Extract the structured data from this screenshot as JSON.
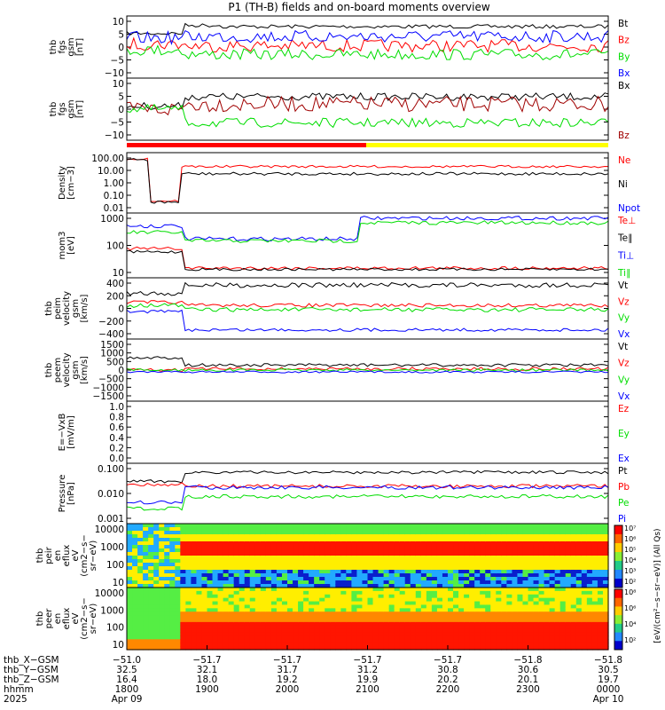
{
  "title": "P1 (TH-B) fields and on-board moments overview",
  "colors": {
    "black": "#000000",
    "red": "#ff0000",
    "green": "#00dd00",
    "blue": "#0000ff",
    "darkred": "#a00000",
    "yellow": "#ffff00"
  },
  "chart_data": [
    {
      "type": "line",
      "ylabel": [
        "thb",
        "fgs",
        "gsm",
        "[nT]"
      ],
      "yticks": [
        "10",
        "5",
        "0",
        "−5",
        "−10"
      ],
      "ylim": [
        -12,
        12
      ],
      "legend": [
        {
          "label": "Bt",
          "color": "black"
        },
        {
          "label": "Bz",
          "color": "red"
        },
        {
          "label": "By",
          "color": "green"
        },
        {
          "label": "Bx",
          "color": "blue"
        }
      ]
    },
    {
      "type": "line",
      "ylabel": [
        "thb",
        "fgs",
        "gsm",
        "[nT]"
      ],
      "yticks": [
        "10",
        "5",
        "0",
        "−5",
        "−10"
      ],
      "ylim": [
        -12,
        12
      ],
      "legend": [
        {
          "label": "Bx",
          "color": "black"
        },
        {
          "label": "Bz",
          "color": "darkred"
        }
      ]
    },
    {
      "type": "line",
      "ylabel": [
        "Density",
        "[cm−3]"
      ],
      "yticks": [
        "100.00",
        "10.00",
        "1.00",
        "0.10",
        "0.01"
      ],
      "ylim": [
        0.005,
        200
      ],
      "log": true,
      "legend": [
        {
          "label": "Ne",
          "color": "red"
        },
        {
          "label": "Ni",
          "color": "black"
        },
        {
          "label": "Npot",
          "color": "blue"
        }
      ]
    },
    {
      "type": "line",
      "ylabel": [
        "mom3",
        "[eV]"
      ],
      "yticks": [
        "1000",
        "100",
        "10"
      ],
      "ylim": [
        8,
        2000
      ],
      "log": true,
      "legend": [
        {
          "label": "Te⊥",
          "color": "red"
        },
        {
          "label": "Te∥",
          "color": "black"
        },
        {
          "label": "Ti⊥",
          "color": "blue"
        },
        {
          "label": "Ti∥",
          "color": "green"
        }
      ]
    },
    {
      "type": "line",
      "ylabel": [
        "thb",
        "peim",
        "velocity",
        "gsm",
        "[km/s]"
      ],
      "yticks": [
        "400",
        "200",
        "0",
        "−200",
        "−400"
      ],
      "ylim": [
        -450,
        450
      ],
      "legend": [
        {
          "label": "Vt",
          "color": "black"
        },
        {
          "label": "Vz",
          "color": "red"
        },
        {
          "label": "Vy",
          "color": "green"
        },
        {
          "label": "Vx",
          "color": "blue"
        }
      ]
    },
    {
      "type": "line",
      "ylabel": [
        "thb",
        "peem",
        "velocity",
        "gsm",
        "[km/s]"
      ],
      "yticks": [
        "1500",
        "1000",
        "500",
        "0",
        "−500",
        "−1000",
        "−1500"
      ],
      "ylim": [
        -1500,
        1500
      ],
      "legend": [
        {
          "label": "Vt",
          "color": "black"
        },
        {
          "label": "Vz",
          "color": "red"
        },
        {
          "label": "Vy",
          "color": "green"
        },
        {
          "label": "Vx",
          "color": "blue"
        }
      ]
    },
    {
      "type": "line",
      "ylabel": [
        "E=−VxB",
        "[mV/m]"
      ],
      "yticks": [
        "1.0",
        "0.8",
        "0.6",
        "0.4",
        "0.2",
        "0.0"
      ],
      "ylim": [
        0,
        1
      ],
      "legend": [
        {
          "label": "Ez",
          "color": "red"
        },
        {
          "label": "Ey",
          "color": "green"
        },
        {
          "label": "Ex",
          "color": "blue"
        }
      ]
    },
    {
      "type": "line",
      "ylabel": [
        "Pressure",
        "[nPa]"
      ],
      "yticks": [
        "0.100",
        "0.010",
        "0.001"
      ],
      "ylim": [
        0.0002,
        0.15
      ],
      "log": true,
      "legend": [
        {
          "label": "Pt",
          "color": "black"
        },
        {
          "label": "Pb",
          "color": "red"
        },
        {
          "label": "Pe",
          "color": "green"
        },
        {
          "label": "Pi",
          "color": "blue"
        }
      ]
    },
    {
      "type": "heatmap",
      "ylabel": [
        "thb",
        "peir",
        "en",
        "eflux",
        "eV",
        "(cm2−s−",
        "sr−eV)"
      ],
      "yticks": [
        "10000",
        "1000",
        "100",
        "10"
      ]
    },
    {
      "type": "heatmap",
      "ylabel": [
        "thb",
        "peer",
        "en",
        "eflux",
        "eV",
        "(cm2−s−",
        "sr−eV)"
      ],
      "yticks": [
        "10000",
        "1000",
        "100",
        "10"
      ]
    }
  ],
  "colorbar": {
    "ticks": [
      "10⁷",
      "10⁶",
      "10⁵",
      "10⁴",
      "10³",
      "10²",
      "10⁸",
      "10⁶",
      "10⁴",
      "10²"
    ],
    "label": "[eV/(cm²−s−sr−eV)] (All Qs)"
  },
  "axis_rows": [
    {
      "label": "thb_X−GSM",
      "values": [
        "−51.0",
        "−51.7",
        "−51.7",
        "−51.7",
        "−51.7",
        "−51.8",
        "−51.8"
      ]
    },
    {
      "label": "thb_Y−GSM",
      "values": [
        "32.5",
        "32.1",
        "31.7",
        "31.2",
        "30.8",
        "30.6",
        "30.5"
      ]
    },
    {
      "label": "thb_Z−GSM",
      "values": [
        "16.4",
        "18.0",
        "19.2",
        "19.9",
        "20.2",
        "20.1",
        "19.7"
      ]
    },
    {
      "label": "hhmm",
      "values": [
        "1800",
        "1900",
        "2000",
        "2100",
        "2200",
        "2300",
        "0000"
      ]
    },
    {
      "label": "2025",
      "values": [
        "Apr 09",
        "",
        "",
        "",
        "",
        "",
        "Apr 10"
      ]
    }
  ],
  "x_hours": [
    "1800",
    "1900",
    "2000",
    "2100",
    "2200",
    "2300",
    "0000"
  ]
}
